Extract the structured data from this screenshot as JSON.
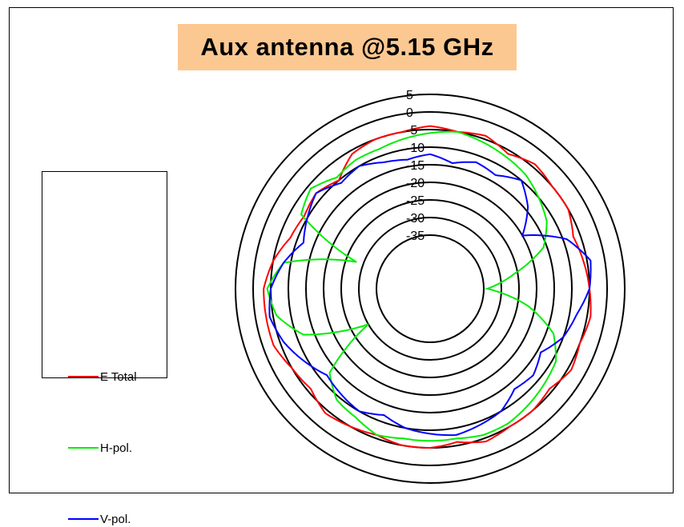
{
  "chart_data": {
    "type": "polar",
    "title": "Aux antenna @5.15 GHz",
    "title_background": "#fcc891",
    "radial_axis": {
      "min": -40,
      "max": 5,
      "ticks": [
        5,
        0,
        -5,
        -10,
        -15,
        -20,
        -25,
        -30,
        -35
      ],
      "tick_labels": [
        "5",
        "0",
        "-5",
        "-10",
        "-15",
        "-20",
        "-25",
        "-30",
        "-35"
      ]
    },
    "grid": true,
    "legend_position": "left",
    "series": [
      {
        "name": "E Total",
        "color": "#ff0000",
        "theta_deg": [
          0,
          10,
          20,
          30,
          40,
          50,
          60,
          70,
          80,
          90,
          100,
          110,
          120,
          130,
          140,
          150,
          160,
          170,
          180,
          190,
          200,
          210,
          220,
          230,
          240,
          250,
          260,
          270,
          280,
          290,
          300,
          310,
          320,
          330,
          340,
          350
        ],
        "r_db": [
          -4,
          -5,
          -4,
          -6,
          -4,
          -5,
          -5,
          -7,
          -6,
          -5,
          -4,
          -5,
          -4,
          -6,
          -5,
          -5,
          -4,
          -6,
          -5,
          -5,
          -6,
          -5,
          -4,
          -6,
          -5,
          -3,
          -3,
          -3,
          -5,
          -8,
          -9,
          -8,
          -10,
          -6,
          -5,
          -5
        ]
      },
      {
        "name": "H-pol.",
        "color": "#00ee00",
        "theta_deg": [
          0,
          10,
          20,
          30,
          40,
          50,
          60,
          70,
          80,
          90,
          100,
          110,
          120,
          130,
          140,
          150,
          160,
          170,
          180,
          190,
          200,
          210,
          220,
          230,
          240,
          250,
          260,
          270,
          280,
          290,
          300,
          310,
          320,
          330,
          340,
          350
        ],
        "r_db": [
          -6,
          -5,
          -6,
          -7,
          -8,
          -10,
          -12,
          -16,
          -26,
          -34,
          -22,
          -13,
          -9,
          -8,
          -7,
          -6,
          -6,
          -7,
          -7,
          -7,
          -6,
          -8,
          -9,
          -13,
          -30,
          -12,
          -6,
          -4,
          -8,
          -28,
          -8,
          -6,
          -9,
          -8,
          -8,
          -7
        ]
      },
      {
        "name": "V-pol.",
        "color": "#0000ff",
        "theta_deg": [
          0,
          10,
          20,
          30,
          40,
          50,
          60,
          70,
          80,
          90,
          100,
          110,
          120,
          130,
          140,
          150,
          160,
          170,
          180,
          190,
          200,
          210,
          220,
          230,
          240,
          250,
          260,
          270,
          280,
          290,
          300,
          310,
          320,
          330,
          340,
          350
        ],
        "r_db": [
          -12,
          -14,
          -12,
          -13,
          -10,
          -14,
          -20,
          -9,
          -4,
          -5,
          -8,
          -10,
          -14,
          -12,
          -13,
          -10,
          -9,
          -8,
          -9,
          -10,
          -12,
          -10,
          -11,
          -12,
          -9,
          -6,
          -4,
          -5,
          -8,
          -12,
          -10,
          -8,
          -11,
          -10,
          -12,
          -13
        ]
      }
    ]
  }
}
